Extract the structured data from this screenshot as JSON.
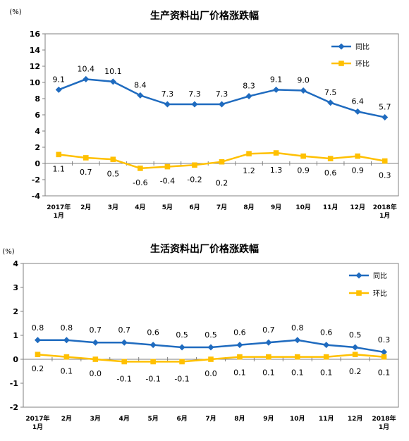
{
  "chart_data": [
    {
      "type": "line",
      "title": "生产资料出厂价格涨跌幅",
      "unit": "(%)",
      "categories": [
        "2017年\n1月",
        "2月",
        "3月",
        "4月",
        "5月",
        "6月",
        "7月",
        "8月",
        "9月",
        "10月",
        "11月",
        "12月",
        "2018年\n1月"
      ],
      "ylim": [
        -4,
        16
      ],
      "yticks": [
        -4,
        -2,
        0,
        2,
        4,
        6,
        8,
        10,
        12,
        14,
        16
      ],
      "grid": false,
      "legend_position": "top-right",
      "series": [
        {
          "name": "同比",
          "color": "#1f6bbf",
          "marker": "diamond",
          "values": [
            9.1,
            10.4,
            10.1,
            8.4,
            7.3,
            7.3,
            7.3,
            8.3,
            9.1,
            9.0,
            7.5,
            6.4,
            5.7
          ],
          "labels": [
            "9.1",
            "10.4",
            "10.1",
            "8.4",
            "7.3",
            "7.3",
            "7.3",
            "8.3",
            "9.1",
            "9.0",
            "7.5",
            "6.4",
            "5.7"
          ]
        },
        {
          "name": "环比",
          "color": "#ffc000",
          "marker": "square",
          "values": [
            1.1,
            0.7,
            0.5,
            -0.6,
            -0.4,
            -0.2,
            0.2,
            1.2,
            1.3,
            0.9,
            0.6,
            0.9,
            0.3
          ],
          "labels": [
            "1.1",
            "0.7",
            "0.5",
            "-0.6",
            "-0.4",
            "-0.2",
            "0.2",
            "1.2",
            "1.3",
            "0.9",
            "0.6",
            "0.9",
            "0.3"
          ]
        }
      ]
    },
    {
      "type": "line",
      "title": "生活资料出厂价格涨跌幅",
      "unit": "(%)",
      "categories": [
        "2017年\n1月",
        "2月",
        "3月",
        "4月",
        "5月",
        "6月",
        "7月",
        "8月",
        "9月",
        "10月",
        "11月",
        "12月",
        "2018年\n1月"
      ],
      "ylim": [
        -2,
        4
      ],
      "yticks": [
        -2,
        -1,
        0,
        1,
        2,
        3,
        4
      ],
      "grid": false,
      "legend_position": "top-right",
      "series": [
        {
          "name": "同比",
          "color": "#1f6bbf",
          "marker": "diamond",
          "values": [
            0.8,
            0.8,
            0.7,
            0.7,
            0.6,
            0.5,
            0.5,
            0.6,
            0.7,
            0.8,
            0.6,
            0.5,
            0.3
          ],
          "labels": [
            "0.8",
            "0.8",
            "0.7",
            "0.7",
            "0.6",
            "0.5",
            "0.5",
            "0.6",
            "0.7",
            "0.8",
            "0.6",
            "0.5",
            "0.3"
          ]
        },
        {
          "name": "环比",
          "color": "#ffc000",
          "marker": "square",
          "values": [
            0.2,
            0.1,
            0.0,
            -0.1,
            -0.1,
            -0.1,
            0.0,
            0.1,
            0.1,
            0.1,
            0.1,
            0.2,
            0.1
          ],
          "labels": [
            "0.2",
            "0.1",
            "0.0",
            "-0.1",
            "-0.1",
            "-0.1",
            "0.0",
            "0.1",
            "0.1",
            "0.1",
            "0.1",
            "0.2",
            "0.1"
          ]
        }
      ]
    }
  ]
}
